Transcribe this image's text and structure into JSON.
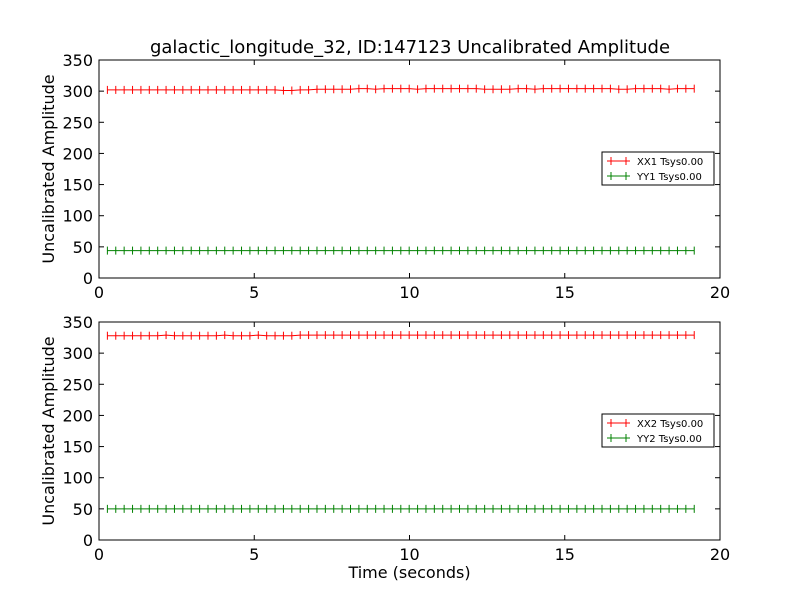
{
  "title": "galactic_longitude_32, ID:147123 Uncalibrated Amplitude",
  "chart_data": [
    {
      "type": "line",
      "ylabel": "Uncalibrated Amplitude",
      "xlabel": "",
      "xlim": [
        0,
        20
      ],
      "ylim": [
        0,
        350
      ],
      "xticks": [
        "0",
        "5",
        "10",
        "15",
        "20"
      ],
      "yticks": [
        "0",
        "50",
        "100",
        "150",
        "200",
        "250",
        "300",
        "350"
      ],
      "legend_position": "center-right",
      "x_start": 0.27,
      "x_step": 0.27,
      "series": [
        {
          "name": "XX1 Tsys0.00",
          "color": "#ff0000",
          "values": [
            302,
            302,
            302,
            302,
            302,
            302,
            302,
            302,
            302,
            302,
            302,
            302,
            302,
            302,
            302,
            302,
            302,
            302,
            302,
            302,
            302,
            301,
            301,
            302,
            302,
            303,
            303,
            303,
            303,
            303,
            304,
            304,
            303,
            304,
            304,
            304,
            304,
            303,
            304,
            304,
            304,
            304,
            304,
            304,
            304,
            303,
            303,
            303,
            303,
            304,
            304,
            303,
            304,
            304,
            304,
            304,
            304,
            304,
            304,
            304,
            304,
            303,
            303,
            304,
            304,
            304,
            304,
            303,
            304,
            304,
            304
          ]
        },
        {
          "name": "YY1 Tsys0.00",
          "color": "#008000",
          "values": [
            44,
            44,
            44,
            44,
            44,
            44,
            44,
            44,
            44,
            44,
            44,
            44,
            44,
            44,
            44,
            44,
            44,
            44,
            44,
            44,
            44,
            44,
            44,
            44,
            44,
            44,
            44,
            44,
            44,
            44,
            44,
            44,
            44,
            44,
            44,
            44,
            44,
            44,
            44,
            44,
            44,
            44,
            44,
            44,
            44,
            44,
            44,
            44,
            44,
            44,
            44,
            44,
            44,
            44,
            44,
            44,
            44,
            44,
            44,
            44,
            44,
            44,
            44,
            44,
            44,
            44,
            44,
            44,
            44,
            44,
            44
          ]
        }
      ]
    },
    {
      "type": "line",
      "ylabel": "Uncalibrated Amplitude",
      "xlabel": "Time (seconds)",
      "xlim": [
        0,
        20
      ],
      "ylim": [
        0,
        350
      ],
      "xticks": [
        "0",
        "5",
        "10",
        "15",
        "20"
      ],
      "yticks": [
        "0",
        "50",
        "100",
        "150",
        "200",
        "250",
        "300",
        "350"
      ],
      "legend_position": "center-right",
      "x_start": 0.27,
      "x_step": 0.27,
      "series": [
        {
          "name": "XX2 Tsys0.00",
          "color": "#ff0000",
          "values": [
            328,
            328,
            328,
            328,
            328,
            328,
            328,
            329,
            328,
            328,
            328,
            328,
            328,
            328,
            329,
            328,
            328,
            328,
            329,
            328,
            328,
            328,
            328,
            329,
            329,
            329,
            329,
            329,
            329,
            329,
            329,
            329,
            329,
            329,
            329,
            329,
            329,
            329,
            329,
            329,
            329,
            329,
            329,
            329,
            329,
            329,
            329,
            329,
            329,
            329,
            329,
            329,
            329,
            329,
            329,
            329,
            329,
            329,
            329,
            329,
            329,
            329,
            329,
            329,
            329,
            329,
            329,
            329,
            329,
            329,
            329
          ]
        },
        {
          "name": "YY2 Tsys0.00",
          "color": "#008000",
          "values": [
            50,
            50,
            50,
            50,
            50,
            50,
            50,
            50,
            50,
            50,
            50,
            50,
            50,
            50,
            50,
            50,
            50,
            50,
            50,
            50,
            50,
            50,
            50,
            50,
            50,
            50,
            50,
            50,
            50,
            50,
            50,
            50,
            50,
            50,
            50,
            50,
            50,
            50,
            50,
            50,
            50,
            50,
            50,
            50,
            50,
            50,
            50,
            50,
            50,
            50,
            50,
            50,
            50,
            50,
            50,
            50,
            50,
            50,
            50,
            50,
            50,
            50,
            50,
            50,
            50,
            50,
            50,
            50,
            50,
            50,
            50
          ]
        }
      ]
    }
  ]
}
